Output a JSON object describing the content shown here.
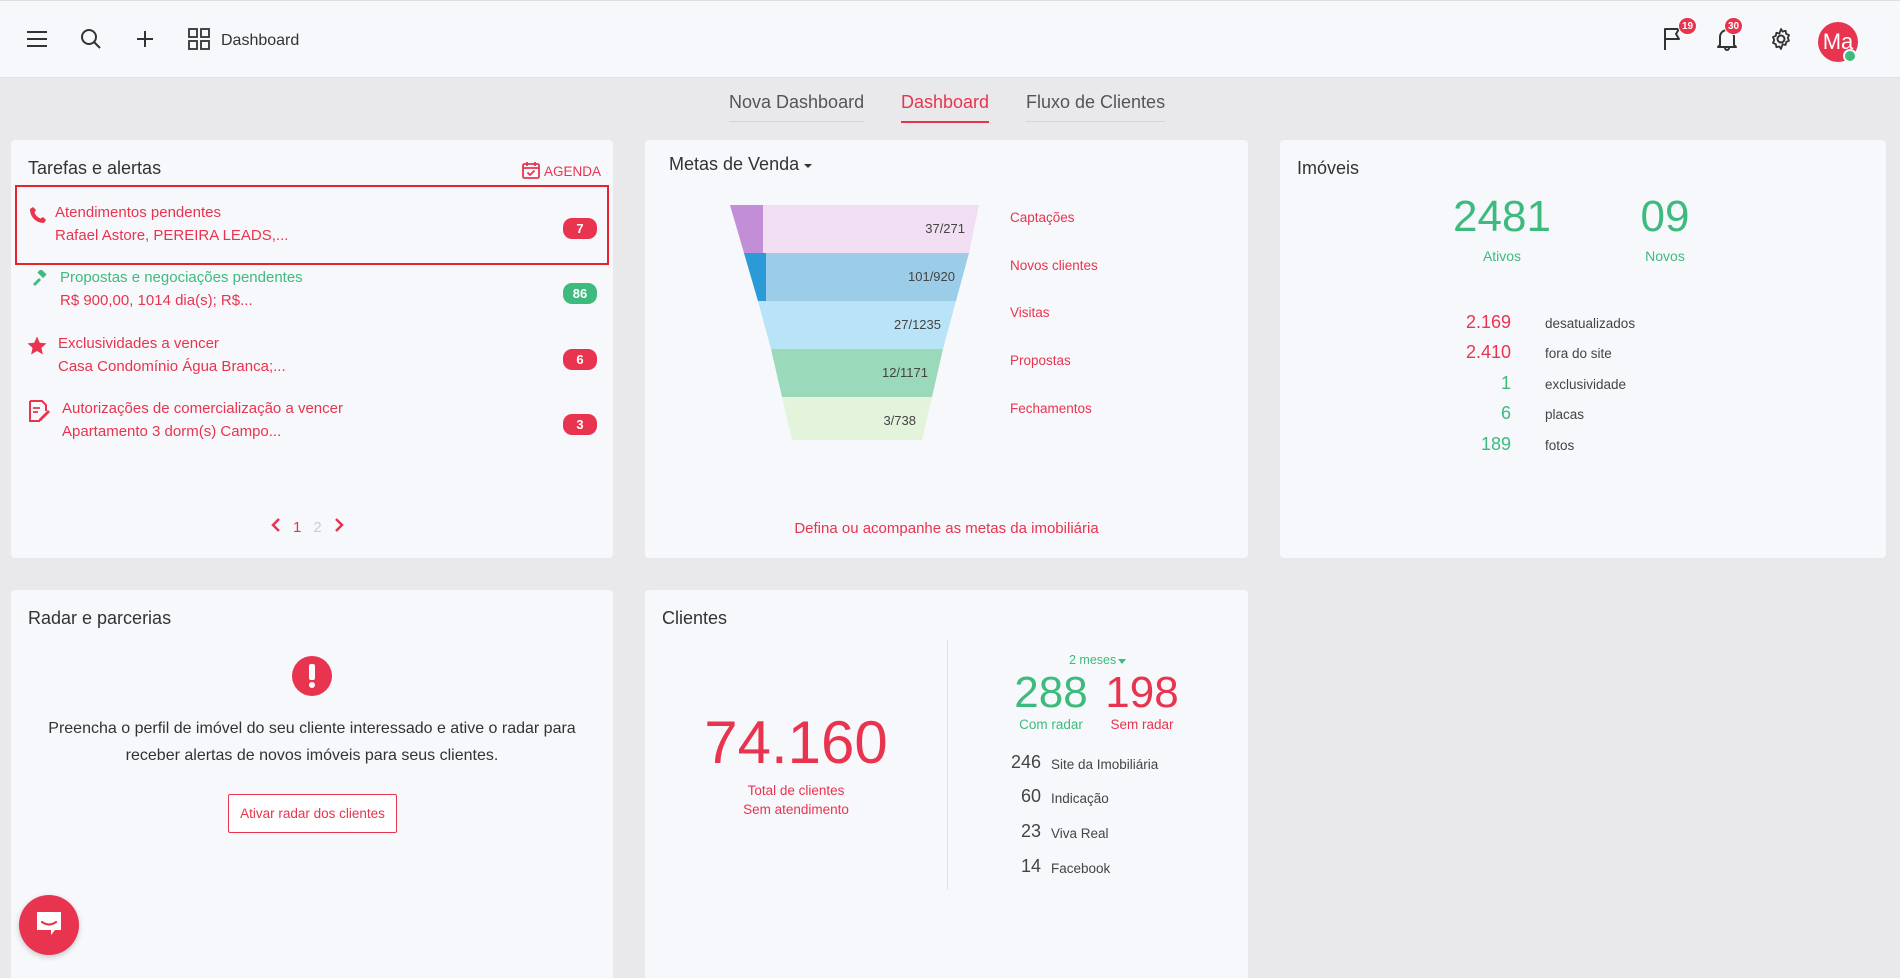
{
  "header": {
    "title": "Dashboard",
    "flag_badge": "19",
    "notif_badge": "30",
    "avatar_initials": "Ma"
  },
  "tabs": [
    {
      "label": "Nova Dashboard"
    },
    {
      "label": "Dashboard"
    },
    {
      "label": "Fluxo de Clientes"
    }
  ],
  "tasks_card": {
    "title": "Tarefas e alertas",
    "agenda_label": "AGENDA",
    "items": [
      {
        "title": "Atendimentos pendentes",
        "detail": "Rafael Astore, PEREIRA LEADS,...",
        "count": "7",
        "icon": "phone-icon"
      },
      {
        "title": "Propostas e negociações pendentes",
        "detail": "R$ 900,00, 1014 dia(s); R$...",
        "count": "86",
        "icon": "gavel-icon"
      },
      {
        "title": "Exclusividades a vencer",
        "detail": "Casa Condomínio Água Branca;...",
        "count": "6",
        "icon": "star-icon"
      },
      {
        "title": "Autorizações de comercialização a vencer",
        "detail": "Apartamento 3 dorm(s) Campo...",
        "count": "3",
        "icon": "document-sign-icon"
      }
    ],
    "pager": {
      "page1": "1",
      "page2": "2"
    }
  },
  "metas_card": {
    "title": "Metas de Venda",
    "stages": [
      {
        "label": "Captações",
        "value": "37/271",
        "color": "#f2def3",
        "accent": "#c28fd6"
      },
      {
        "label": "Novos clientes",
        "value": "101/920",
        "color": "#9ccde8",
        "accent": "#2b9bd8"
      },
      {
        "label": "Visitas",
        "value": "27/1235",
        "color": "#b9e3f7",
        "accent": ""
      },
      {
        "label": "Propostas",
        "value": "12/1171",
        "color": "#9ad9b9",
        "accent": ""
      },
      {
        "label": "Fechamentos",
        "value": "3/738",
        "color": "#e4f4dc",
        "accent": ""
      }
    ],
    "link": "Defina ou acompanhe as metas da imobiliária"
  },
  "imoveis_card": {
    "title": "Imóveis",
    "ativos_value": "2481",
    "ativos_label": "Ativos",
    "novos_value": "09",
    "novos_label": "Novos",
    "stats": [
      {
        "value": "2.169",
        "label": "desatualizados",
        "color": "red"
      },
      {
        "value": "2.410",
        "label": "fora do site",
        "color": "red"
      },
      {
        "value": "1",
        "label": "exclusividade",
        "color": "green"
      },
      {
        "value": "6",
        "label": "placas",
        "color": "green"
      },
      {
        "value": "189",
        "label": "fotos",
        "color": "green"
      }
    ]
  },
  "radar_card": {
    "title": "Radar e parcerias",
    "message_line1": "Preencha o perfil de imóvel do seu cliente interessado e ative o radar para",
    "message_line2": "receber alertas de novos imóveis para seus clientes.",
    "button": "Ativar radar dos clientes"
  },
  "clientes_card": {
    "title": "Clientes",
    "total": "74.160",
    "total_label1": "Total de clientes",
    "total_label2": "Sem atendimento",
    "period": "2 meses",
    "com_radar_value": "288",
    "com_radar_label": "Com radar",
    "sem_radar_value": "198",
    "sem_radar_label": "Sem radar",
    "sources": [
      {
        "value": "246",
        "label": "Site da Imobiliária"
      },
      {
        "value": "60",
        "label": "Indicação"
      },
      {
        "value": "23",
        "label": "Viva Real"
      },
      {
        "value": "14",
        "label": "Facebook"
      }
    ]
  }
}
